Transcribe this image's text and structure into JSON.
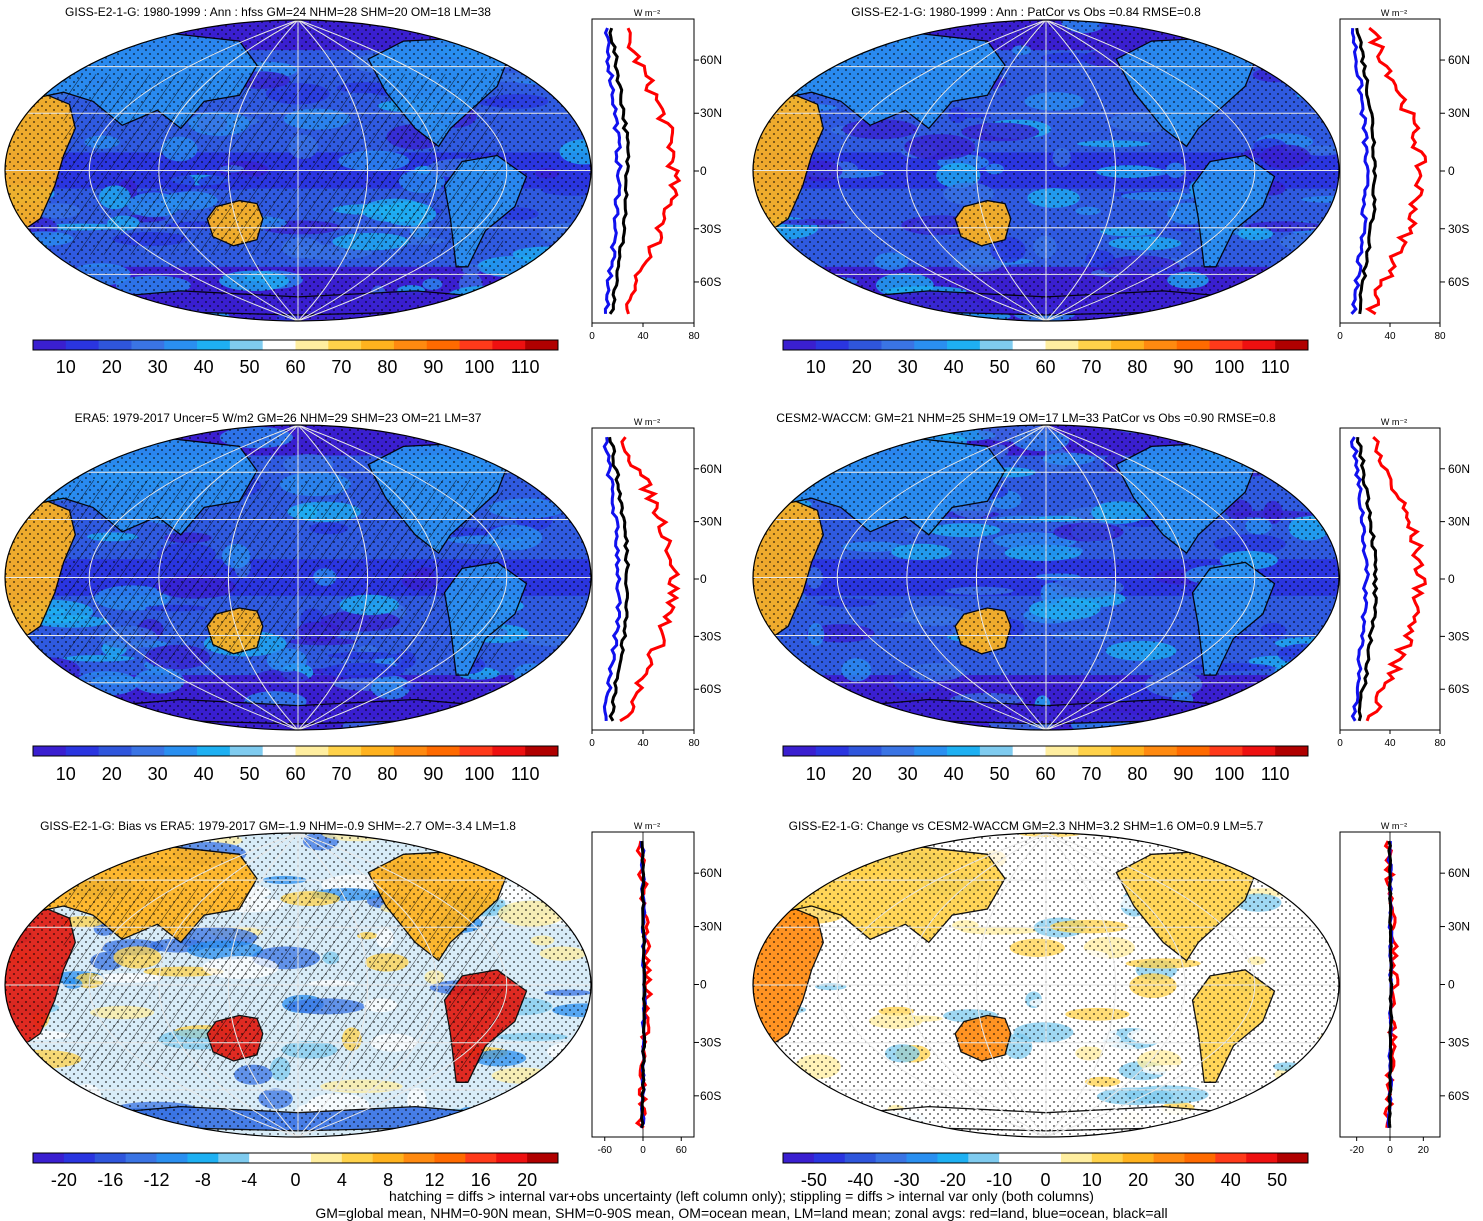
{
  "figure": {
    "footer_lines": [
      "hatching = diffs > internal var+obs uncertainty (left column only); stippling = diffs > internal var only (both columns)",
      "GM=global mean, NHM=0-90N mean, SHM=0-90S mean, OM=ocean mean, LM=land mean; zonal avgs: red=land, blue=ocean, black=all"
    ],
    "latitude_labels": [
      "60N",
      "30N",
      "0",
      "30S",
      "60S"
    ],
    "units_label": "W m⁻²",
    "colors": {
      "land_line": "#ff0000",
      "ocean_line": "#1010ee",
      "all_line": "#000000",
      "coast": "#000000",
      "grid": "#e8e8e8"
    },
    "absolute_scale": {
      "ticks": [
        "10",
        "20",
        "30",
        "40",
        "50",
        "60",
        "70",
        "80",
        "90",
        "100",
        "110"
      ],
      "colors": [
        "#3a1fd0",
        "#2a35e0",
        "#2f56dc",
        "#3a74e4",
        "#2a8ff0",
        "#1eb0f2",
        "#7fcbef",
        "#ffffff",
        "#ffeea0",
        "#ffd24a",
        "#ffb21e",
        "#ff8a10",
        "#ff6a00",
        "#ff3a1a",
        "#ee1010",
        "#b00000"
      ]
    },
    "bias_scale": {
      "ticks": [
        "-20",
        "-16",
        "-12",
        "-8",
        "-4",
        "0",
        "4",
        "8",
        "12",
        "16",
        "20"
      ],
      "colors": [
        "#3a1fd0",
        "#2a35e0",
        "#2f56dc",
        "#3a74e4",
        "#2a8ff0",
        "#1eb0f2",
        "#7fcbef",
        "#ffffff",
        "#ffffff",
        "#ffeea0",
        "#ffd24a",
        "#ffb21e",
        "#ff8a10",
        "#ff6a00",
        "#ff3a1a",
        "#ee1010",
        "#b00000"
      ]
    },
    "change_scale": {
      "ticks": [
        "-50",
        "-40",
        "-30",
        "-20",
        "-10",
        "0",
        "10",
        "20",
        "30",
        "40",
        "50"
      ],
      "colors": [
        "#3a1fd0",
        "#2a35e0",
        "#2f56dc",
        "#3a74e4",
        "#2a8ff0",
        "#1eb0f2",
        "#7fcbef",
        "#ffffff",
        "#ffffff",
        "#ffeea0",
        "#ffd24a",
        "#ffb21e",
        "#ff8a10",
        "#ff6a00",
        "#ff3a1a",
        "#ee1010",
        "#b00000"
      ]
    }
  },
  "panels": [
    {
      "id": "p1",
      "title": "GISS-E2-1-G: 1980-1999 : Ann : hfss GM=24 NHM=28 SHM=20 OM=18 LM=38",
      "scale": "absolute_scale",
      "map_style": "absolute",
      "hatching": true,
      "zonal_x_ticks": [
        "0",
        "40",
        "80"
      ],
      "zonal_xlim": [
        0,
        80
      ]
    },
    {
      "id": "p2",
      "title": "GISS-E2-1-G: 1980-1999 : Ann : PatCor vs Obs =0.84 RMSE=0.8",
      "scale": "absolute_scale",
      "map_style": "absolute",
      "hatching": false,
      "zonal_x_ticks": [
        "0",
        "40",
        "80"
      ],
      "zonal_xlim": [
        0,
        80
      ]
    },
    {
      "id": "p3",
      "title": "ERA5: 1979-2017 Uncer=5 W/m2 GM=26 NHM=29 SHM=23 OM=21 LM=37",
      "scale": "absolute_scale",
      "map_style": "absolute",
      "hatching": true,
      "zonal_x_ticks": [
        "0",
        "40",
        "80"
      ],
      "zonal_xlim": [
        0,
        80
      ]
    },
    {
      "id": "p4",
      "title": "CESM2-WACCM: GM=21 NHM=25 SHM=19 OM=17 LM=33 PatCor vs Obs =0.90 RMSE=0.8",
      "scale": "absolute_scale",
      "map_style": "absolute",
      "hatching": false,
      "zonal_x_ticks": [
        "0",
        "40",
        "80"
      ],
      "zonal_xlim": [
        0,
        80
      ]
    },
    {
      "id": "p5",
      "title": "GISS-E2-1-G: Bias vs ERA5: 1979-2017 GM=-1.9 NHM=-0.9 SHM=-2.7 OM=-3.4 LM=1.8",
      "scale": "bias_scale",
      "map_style": "bias",
      "hatching": true,
      "zonal_x_ticks": [
        "-60",
        "0",
        "60"
      ],
      "zonal_xlim": [
        -80,
        80
      ]
    },
    {
      "id": "p6",
      "title": "GISS-E2-1-G: Change vs CESM2-WACCM GM=2.3 NHM=3.2 SHM=1.6 OM=0.9 LM=5.7",
      "scale": "change_scale",
      "map_style": "change",
      "hatching": false,
      "zonal_x_ticks": [
        "-20",
        "0",
        "20"
      ],
      "zonal_xlim": [
        -30,
        30
      ]
    }
  ]
}
